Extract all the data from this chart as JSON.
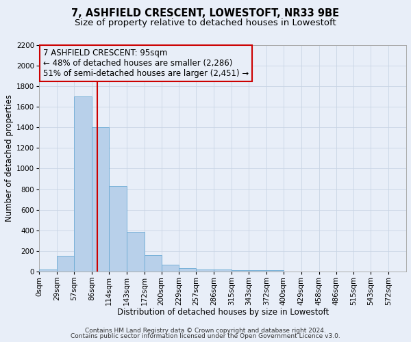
{
  "title": "7, ASHFIELD CRESCENT, LOWESTOFT, NR33 9BE",
  "subtitle": "Size of property relative to detached houses in Lowestoft",
  "xlabel": "Distribution of detached houses by size in Lowestoft",
  "ylabel": "Number of detached properties",
  "bar_color": "#b8d0ea",
  "bar_edge_color": "#6aaad4",
  "bin_labels": [
    "0sqm",
    "29sqm",
    "57sqm",
    "86sqm",
    "114sqm",
    "143sqm",
    "172sqm",
    "200sqm",
    "229sqm",
    "257sqm",
    "286sqm",
    "315sqm",
    "343sqm",
    "372sqm",
    "400sqm",
    "429sqm",
    "458sqm",
    "486sqm",
    "515sqm",
    "543sqm",
    "572sqm"
  ],
  "bin_edges": [
    0,
    29,
    57,
    86,
    114,
    143,
    172,
    200,
    229,
    257,
    286,
    315,
    343,
    372,
    400,
    429,
    458,
    486,
    515,
    543,
    572,
    601
  ],
  "bar_heights": [
    20,
    155,
    1700,
    1400,
    830,
    385,
    160,
    65,
    30,
    20,
    20,
    15,
    15,
    15,
    0,
    0,
    0,
    0,
    0,
    0,
    0
  ],
  "red_line_x": 95,
  "ylim": [
    0,
    2200
  ],
  "yticks": [
    0,
    200,
    400,
    600,
    800,
    1000,
    1200,
    1400,
    1600,
    1800,
    2000,
    2200
  ],
  "xtick_positions": [
    0,
    29,
    57,
    86,
    114,
    143,
    172,
    200,
    229,
    257,
    286,
    315,
    343,
    372,
    400,
    429,
    458,
    486,
    515,
    543,
    572
  ],
  "xlim": [
    0,
    601
  ],
  "annotation_box_text": [
    "7 ASHFIELD CRESCENT: 95sqm",
    "← 48% of detached houses are smaller (2,286)",
    "51% of semi-detached houses are larger (2,451) →"
  ],
  "red_line_color": "#cc0000",
  "annotation_box_edge_color": "#cc0000",
  "grid_color": "#c8d4e4",
  "background_color": "#e8eef8",
  "plot_bg_color": "#e8eef8",
  "footer_line1": "Contains HM Land Registry data © Crown copyright and database right 2024.",
  "footer_line2": "Contains public sector information licensed under the Open Government Licence v3.0.",
  "title_fontsize": 10.5,
  "subtitle_fontsize": 9.5,
  "axis_label_fontsize": 8.5,
  "tick_fontsize": 7.5,
  "annotation_fontsize": 8.5,
  "footer_fontsize": 6.5
}
